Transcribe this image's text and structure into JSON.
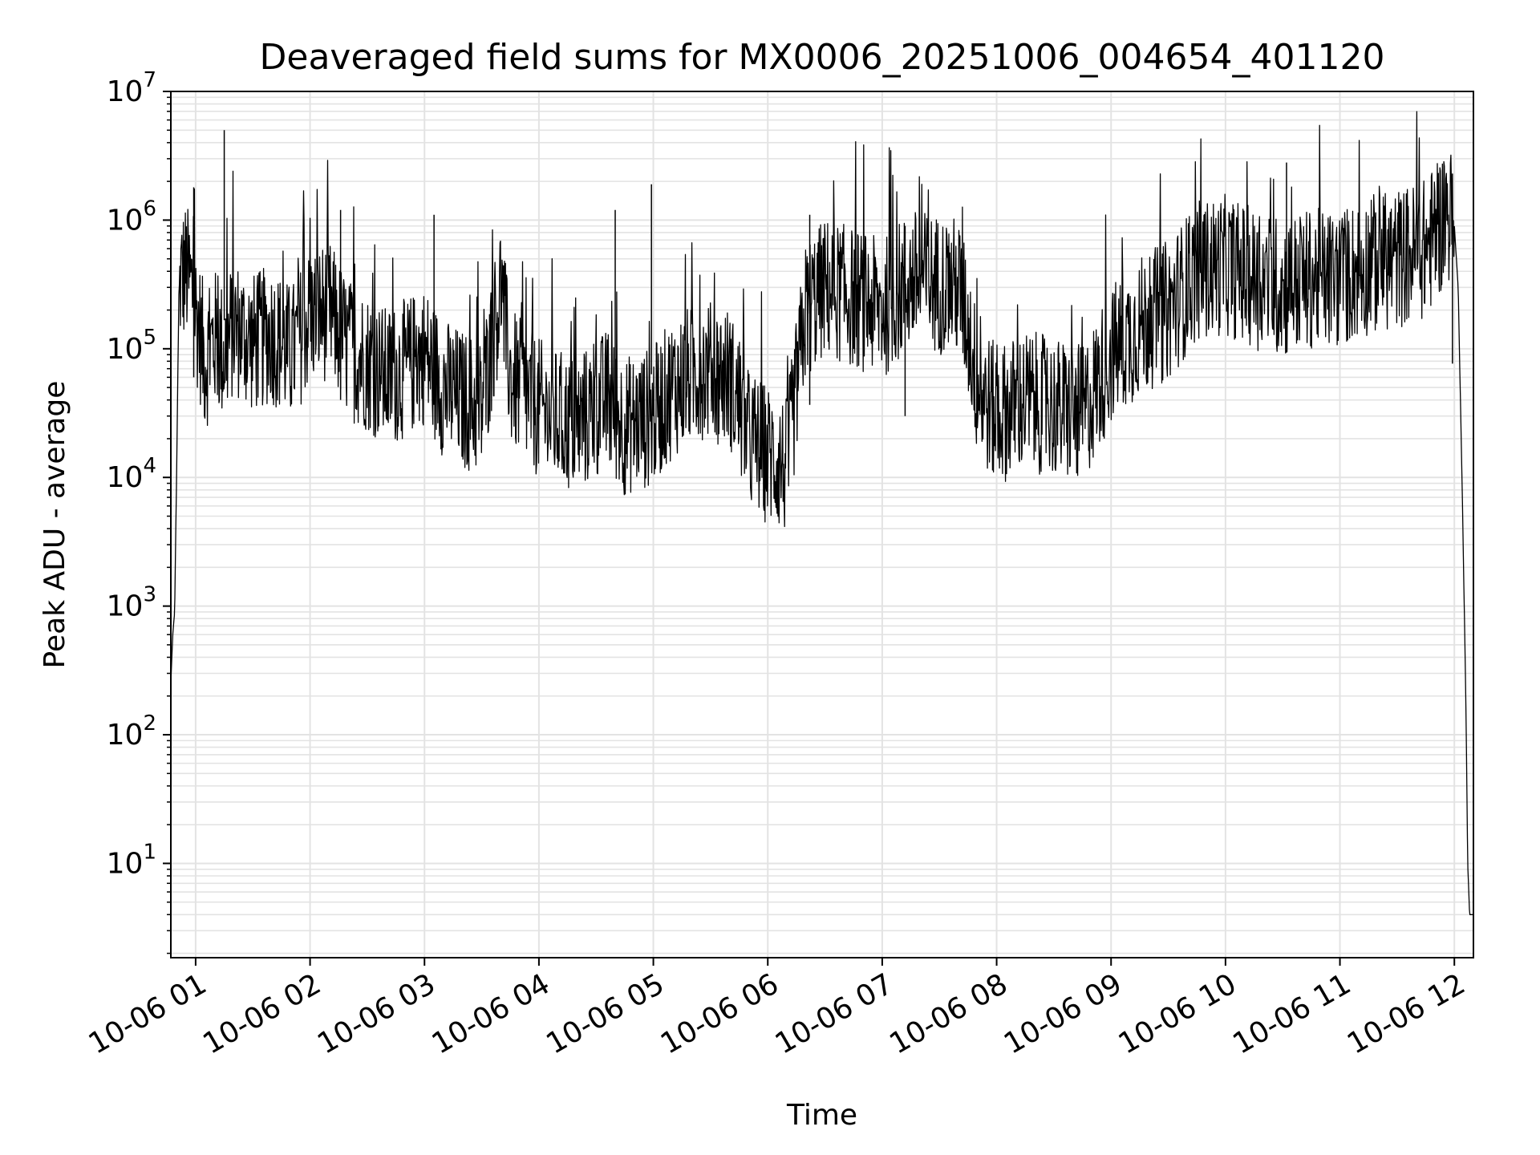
{
  "chart_data": {
    "type": "line",
    "title": "Deaveraged field sums for MX0006_20251006_004654_401120",
    "xlabel": "Time",
    "ylabel": "Peak ADU - average",
    "xscale": "time",
    "yscale": "log",
    "grid": true,
    "xlim": [
      "2025-10-06T00:47",
      "2025-10-06T12:10"
    ],
    "ylim": [
      1.85,
      10000000
    ],
    "x_ticks": [
      "10-06 01",
      "10-06 02",
      "10-06 03",
      "10-06 04",
      "10-06 05",
      "10-06 06",
      "10-06 07",
      "10-06 08",
      "10-06 09",
      "10-06 10",
      "10-06 11",
      "10-06 12"
    ],
    "x_tick_times": [
      "2025-10-06T01:00",
      "2025-10-06T02:00",
      "2025-10-06T03:00",
      "2025-10-06T04:00",
      "2025-10-06T05:00",
      "2025-10-06T06:00",
      "2025-10-06T07:00",
      "2025-10-06T08:00",
      "2025-10-06T09:00",
      "2025-10-06T10:00",
      "2025-10-06T11:00",
      "2025-10-06T12:00"
    ],
    "y_ticks": [
      {
        "base": "10",
        "exp": "1",
        "value": 10
      },
      {
        "base": "10",
        "exp": "2",
        "value": 100
      },
      {
        "base": "10",
        "exp": "3",
        "value": 1000
      },
      {
        "base": "10",
        "exp": "4",
        "value": 10000
      },
      {
        "base": "10",
        "exp": "5",
        "value": 100000
      },
      {
        "base": "10",
        "exp": "6",
        "value": 1000000
      },
      {
        "base": "10",
        "exp": "7",
        "value": 10000000
      }
    ],
    "series": [
      {
        "color": "#000000",
        "points": [
          [
            "2025-10-06T00:47",
            250
          ],
          [
            "2025-10-06T00:48",
            600
          ],
          [
            "2025-10-06T00:49",
            900
          ],
          [
            "2025-10-06T00:50",
            10000
          ],
          [
            "2025-10-06T00:51",
            150000
          ],
          [
            "2025-10-06T00:52",
            350000
          ],
          [
            "2025-10-06T00:55",
            400000
          ],
          [
            "2025-10-06T00:58",
            300000
          ],
          [
            "2025-10-06T01:00",
            200000
          ],
          [
            "2025-10-06T01:05",
            80000
          ],
          [
            "2025-10-06T01:10",
            120000
          ],
          [
            "2025-10-06T01:15",
            90000
          ],
          [
            "2025-10-06T01:20",
            150000
          ],
          [
            "2025-10-06T01:30",
            110000
          ],
          [
            "2025-10-06T01:40",
            130000
          ],
          [
            "2025-10-06T01:50",
            90000
          ],
          [
            "2025-10-06T02:00",
            180000
          ],
          [
            "2025-10-06T02:10",
            200000
          ],
          [
            "2025-10-06T02:20",
            100000
          ],
          [
            "2025-10-06T02:30",
            80000
          ],
          [
            "2025-10-06T02:40",
            60000
          ],
          [
            "2025-10-06T02:50",
            70000
          ],
          [
            "2025-10-06T03:00",
            90000
          ],
          [
            "2025-10-06T03:10",
            50000
          ],
          [
            "2025-10-06T03:20",
            40000
          ],
          [
            "2025-10-06T03:30",
            35000
          ],
          [
            "2025-10-06T03:40",
            300000
          ],
          [
            "2025-10-06T03:45",
            60000
          ],
          [
            "2025-10-06T03:55",
            40000
          ],
          [
            "2025-10-06T04:05",
            30000
          ],
          [
            "2025-10-06T04:20",
            25000
          ],
          [
            "2025-10-06T04:35",
            40000
          ],
          [
            "2025-10-06T04:45",
            25000
          ],
          [
            "2025-10-06T05:00",
            30000
          ],
          [
            "2025-10-06T05:10",
            50000
          ],
          [
            "2025-10-06T05:25",
            70000
          ],
          [
            "2025-10-06T05:40",
            60000
          ],
          [
            "2025-10-06T05:50",
            20000
          ],
          [
            "2025-10-06T06:00",
            15000
          ],
          [
            "2025-10-06T06:10",
            12000
          ],
          [
            "2025-10-06T06:20",
            200000
          ],
          [
            "2025-10-06T06:30",
            300000
          ],
          [
            "2025-10-06T06:45",
            250000
          ],
          [
            "2025-10-06T07:00",
            200000
          ],
          [
            "2025-10-06T07:15",
            350000
          ],
          [
            "2025-10-06T07:30",
            320000
          ],
          [
            "2025-10-06T07:40",
            300000
          ],
          [
            "2025-10-06T07:45",
            150000
          ],
          [
            "2025-10-06T07:50",
            50000
          ],
          [
            "2025-10-06T08:00",
            30000
          ],
          [
            "2025-10-06T08:15",
            40000
          ],
          [
            "2025-10-06T08:30",
            35000
          ],
          [
            "2025-10-06T08:45",
            30000
          ],
          [
            "2025-10-06T09:00",
            90000
          ],
          [
            "2025-10-06T09:15",
            150000
          ],
          [
            "2025-10-06T09:30",
            200000
          ],
          [
            "2025-10-06T09:45",
            400000
          ],
          [
            "2025-10-06T10:00",
            450000
          ],
          [
            "2025-10-06T10:15",
            350000
          ],
          [
            "2025-10-06T10:30",
            300000
          ],
          [
            "2025-10-06T10:45",
            350000
          ],
          [
            "2025-10-06T11:00",
            350000
          ],
          [
            "2025-10-06T11:15",
            450000
          ],
          [
            "2025-10-06T11:30",
            500000
          ],
          [
            "2025-10-06T11:45",
            600000
          ],
          [
            "2025-10-06T11:57",
            1200000
          ],
          [
            "2025-10-06T12:00",
            900000
          ],
          [
            "2025-10-06T12:02",
            300000
          ],
          [
            "2025-10-06T12:04",
            10000
          ],
          [
            "2025-10-06T12:06",
            200
          ],
          [
            "2025-10-06T12:07",
            10
          ],
          [
            "2025-10-06T12:08",
            4
          ],
          [
            "2025-10-06T12:10",
            4
          ]
        ]
      }
    ],
    "spikes": [
      [
        "2025-10-06T00:59",
        1800000
      ],
      [
        "2025-10-06T01:15",
        5000000
      ],
      [
        "2025-10-06T02:16",
        1200000
      ],
      [
        "2025-10-06T03:05",
        1100000
      ],
      [
        "2025-10-06T04:40",
        1200000
      ],
      [
        "2025-10-06T04:59",
        1900000
      ],
      [
        "2025-10-06T06:22",
        1100000
      ],
      [
        "2025-10-06T07:12",
        900000
      ],
      [
        "2025-10-06T10:32",
        2800000
      ],
      [
        "2025-10-06T11:59",
        2300000
      ]
    ]
  }
}
